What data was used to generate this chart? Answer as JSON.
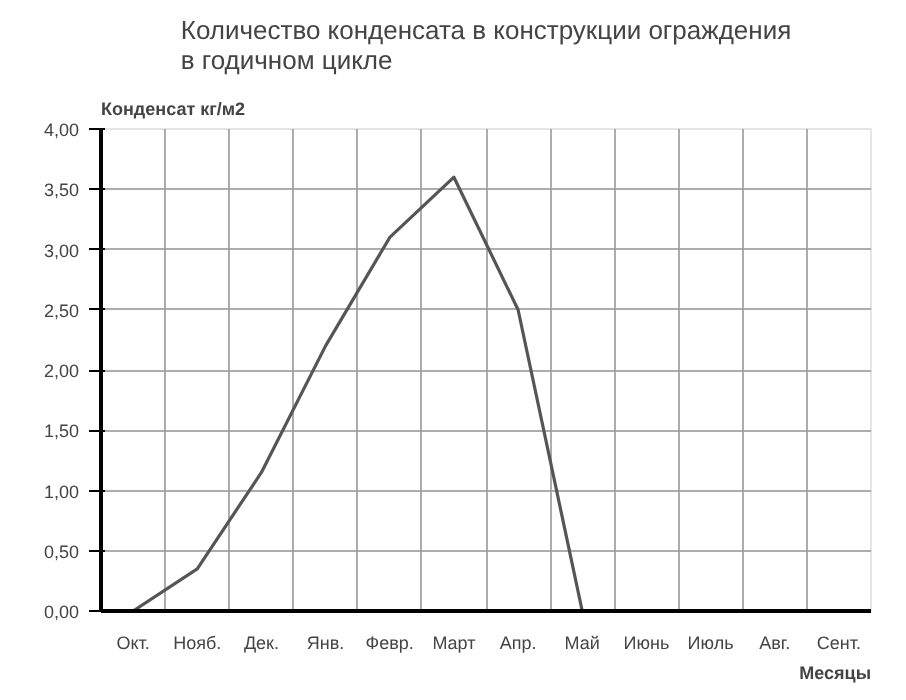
{
  "chart_data": {
    "type": "line",
    "title": "Количество конденсата в конструкции ограждения\nв годичном цикле",
    "ylabel": "Конденсат кг/м2",
    "xlabel": "Месяцы",
    "categories": [
      "Окт.",
      "Нояб.",
      "Дек.",
      "Янв.",
      "Февр.",
      "Март",
      "Апр.",
      "Май",
      "Июнь",
      "Июль",
      "Авг.",
      "Сент."
    ],
    "series": [
      {
        "color": "#555555",
        "values": [
          0,
          0.35,
          1.15,
          2.2,
          3.1,
          3.6,
          2.5,
          0,
          null,
          null,
          null,
          null
        ]
      }
    ],
    "ylim": [
      0,
      4
    ],
    "yticks": [
      {
        "value": 0,
        "label": "0,00"
      },
      {
        "value": 0.5,
        "label": "0,50"
      },
      {
        "value": 1,
        "label": "1,00"
      },
      {
        "value": 1.5,
        "label": "1,50"
      },
      {
        "value": 2,
        "label": "2,00"
      },
      {
        "value": 2.5,
        "label": "2,50"
      },
      {
        "value": 3,
        "label": "3,00"
      },
      {
        "value": 3.5,
        "label": "3,50"
      },
      {
        "value": 4,
        "label": "4,00"
      }
    ],
    "grid": true,
    "marker": "none",
    "line_style": "solid"
  }
}
